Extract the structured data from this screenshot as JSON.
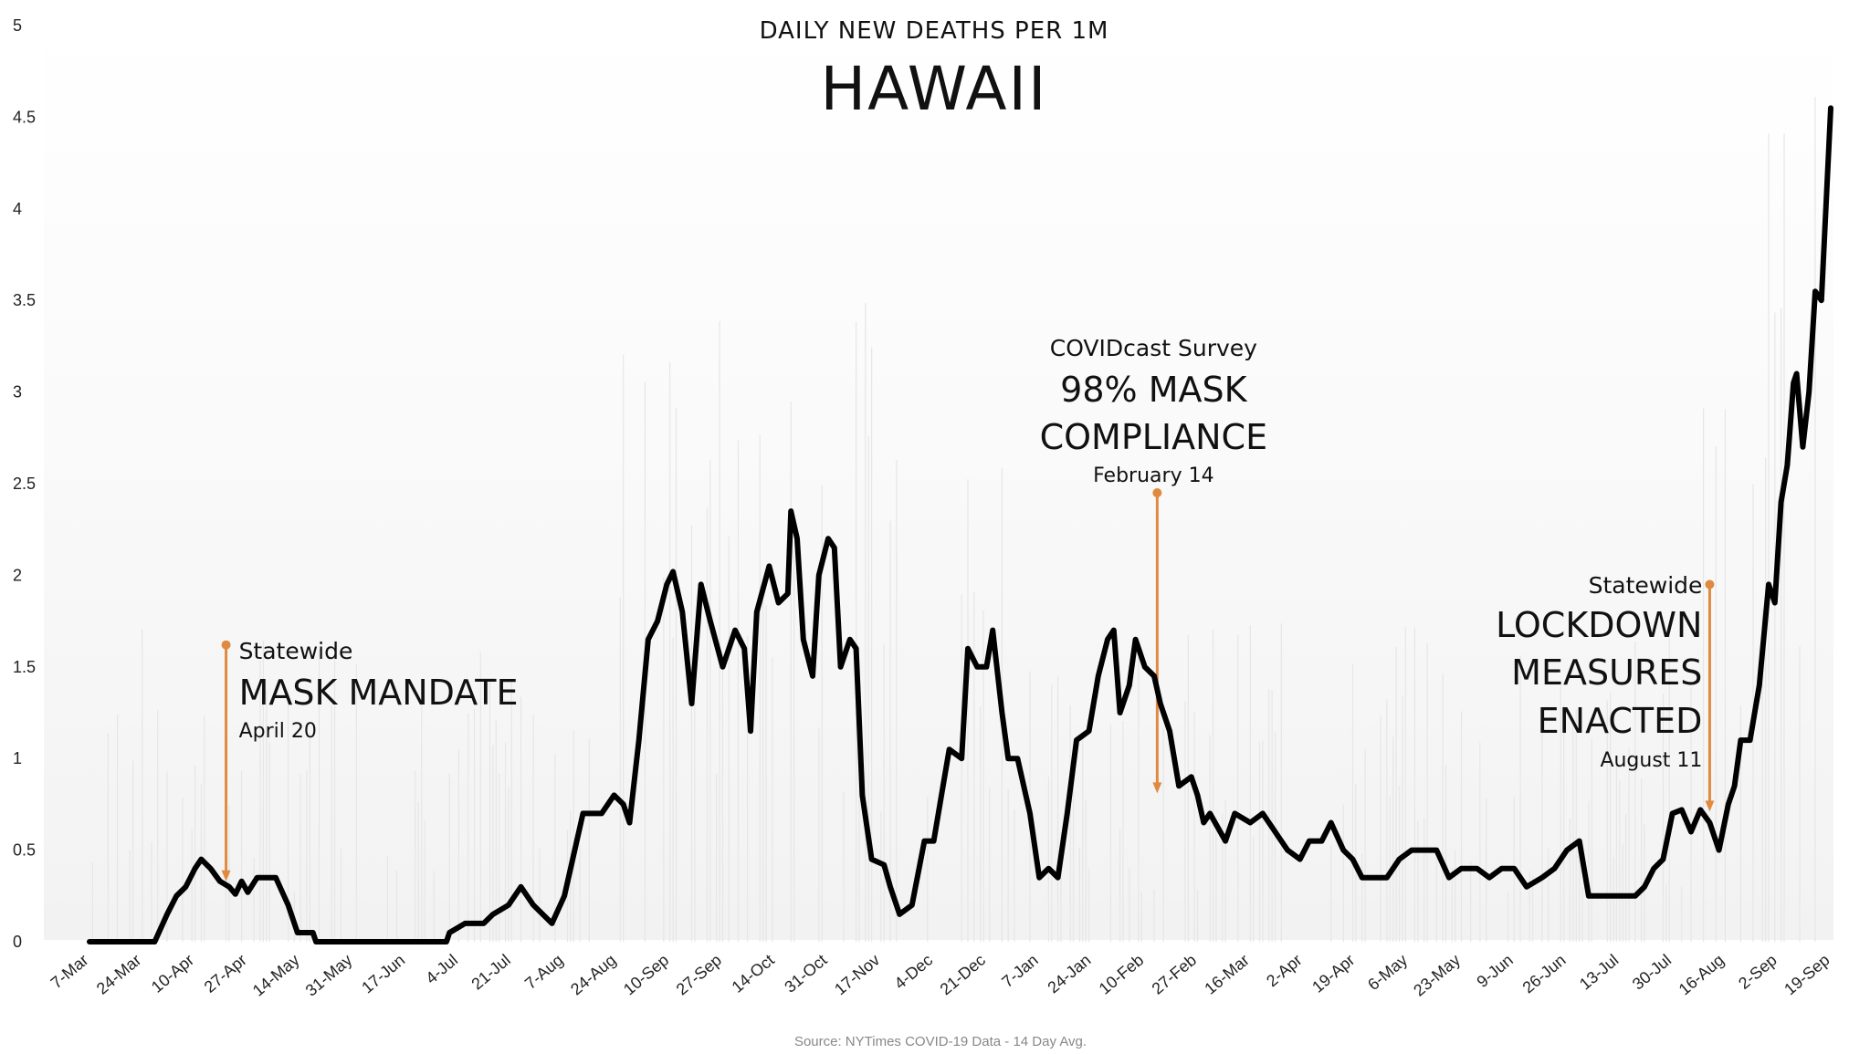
{
  "chart_data": {
    "type": "line",
    "title": "HAWAII",
    "subtitle": "DAILY NEW DEATHS PER 1M",
    "source": "Source: NYTimes COVID-19 Data - 14 Day Avg.",
    "xlabel": "",
    "ylabel": "",
    "ylim": [
      0,
      5
    ],
    "yticks": [
      "0",
      "0.5",
      "1",
      "1.5",
      "2",
      "2.5",
      "3",
      "3.5",
      "4",
      "4.5",
      "5"
    ],
    "xticks": [
      "7-Mar",
      "24-Mar",
      "10-Apr",
      "27-Apr",
      "14-May",
      "31-May",
      "17-Jun",
      "4-Jul",
      "21-Jul",
      "7-Aug",
      "24-Aug",
      "10-Sep",
      "27-Sep",
      "14-Oct",
      "31-Oct",
      "17-Nov",
      "4-Dec",
      "21-Dec",
      "7-Jan",
      "24-Jan",
      "10-Feb",
      "27-Feb",
      "16-Mar",
      "2-Apr",
      "19-Apr",
      "6-May",
      "23-May",
      "9-Jun",
      "26-Jun",
      "13-Jul",
      "30-Jul",
      "16-Aug",
      "2-Sep",
      "19-Sep"
    ],
    "x_start": "2020-03-07",
    "x_end": "2021-09-19",
    "grid": false,
    "series": [
      {
        "name": "",
        "color": "#000000",
        "points": [
          [
            "2020-03-07",
            0
          ],
          [
            "2020-03-24",
            0
          ],
          [
            "2020-03-28",
            0
          ],
          [
            "2020-04-01",
            0.15
          ],
          [
            "2020-04-04",
            0.25
          ],
          [
            "2020-04-07",
            0.3
          ],
          [
            "2020-04-10",
            0.4
          ],
          [
            "2020-04-12",
            0.45
          ],
          [
            "2020-04-15",
            0.4
          ],
          [
            "2020-04-18",
            0.33
          ],
          [
            "2020-04-21",
            0.3
          ],
          [
            "2020-04-23",
            0.26
          ],
          [
            "2020-04-25",
            0.33
          ],
          [
            "2020-04-27",
            0.27
          ],
          [
            "2020-04-30",
            0.35
          ],
          [
            "2020-05-06",
            0.35
          ],
          [
            "2020-05-10",
            0.2
          ],
          [
            "2020-05-13",
            0.05
          ],
          [
            "2020-05-18",
            0.05
          ],
          [
            "2020-05-19",
            0
          ],
          [
            "2020-06-30",
            0
          ],
          [
            "2020-07-01",
            0.05
          ],
          [
            "2020-07-06",
            0.1
          ],
          [
            "2020-07-12",
            0.1
          ],
          [
            "2020-07-15",
            0.15
          ],
          [
            "2020-07-20",
            0.2
          ],
          [
            "2020-07-24",
            0.3
          ],
          [
            "2020-07-28",
            0.2
          ],
          [
            "2020-08-03",
            0.1
          ],
          [
            "2020-08-07",
            0.25
          ],
          [
            "2020-08-13",
            0.7
          ],
          [
            "2020-08-19",
            0.7
          ],
          [
            "2020-08-23",
            0.8
          ],
          [
            "2020-08-26",
            0.75
          ],
          [
            "2020-08-28",
            0.65
          ],
          [
            "2020-08-31",
            1.1
          ],
          [
            "2020-09-03",
            1.65
          ],
          [
            "2020-09-06",
            1.75
          ],
          [
            "2020-09-09",
            1.95
          ],
          [
            "2020-09-11",
            2.02
          ],
          [
            "2020-09-14",
            1.8
          ],
          [
            "2020-09-17",
            1.3
          ],
          [
            "2020-09-20",
            1.95
          ],
          [
            "2020-09-23",
            1.75
          ],
          [
            "2020-09-27",
            1.5
          ],
          [
            "2020-10-01",
            1.7
          ],
          [
            "2020-10-04",
            1.6
          ],
          [
            "2020-10-06",
            1.15
          ],
          [
            "2020-10-08",
            1.8
          ],
          [
            "2020-10-12",
            2.05
          ],
          [
            "2020-10-15",
            1.85
          ],
          [
            "2020-10-18",
            1.9
          ],
          [
            "2020-10-19",
            2.35
          ],
          [
            "2020-10-21",
            2.2
          ],
          [
            "2020-10-23",
            1.65
          ],
          [
            "2020-10-26",
            1.45
          ],
          [
            "2020-10-28",
            2.0
          ],
          [
            "2020-10-31",
            2.2
          ],
          [
            "2020-11-02",
            2.15
          ],
          [
            "2020-11-04",
            1.5
          ],
          [
            "2020-11-07",
            1.65
          ],
          [
            "2020-11-09",
            1.6
          ],
          [
            "2020-11-11",
            0.8
          ],
          [
            "2020-11-14",
            0.45
          ],
          [
            "2020-11-18",
            0.42
          ],
          [
            "2020-11-20",
            0.3
          ],
          [
            "2020-11-23",
            0.15
          ],
          [
            "2020-11-27",
            0.2
          ],
          [
            "2020-12-01",
            0.55
          ],
          [
            "2020-12-04",
            0.55
          ],
          [
            "2020-12-07",
            0.85
          ],
          [
            "2020-12-09",
            1.05
          ],
          [
            "2020-12-13",
            1.0
          ],
          [
            "2020-12-15",
            1.6
          ],
          [
            "2020-12-18",
            1.5
          ],
          [
            "2020-12-21",
            1.5
          ],
          [
            "2020-12-23",
            1.7
          ],
          [
            "2020-12-26",
            1.25
          ],
          [
            "2020-12-28",
            1.0
          ],
          [
            "2020-12-31",
            1.0
          ],
          [
            "2021-01-04",
            0.7
          ],
          [
            "2021-01-07",
            0.35
          ],
          [
            "2021-01-10",
            0.4
          ],
          [
            "2021-01-13",
            0.35
          ],
          [
            "2021-01-16",
            0.7
          ],
          [
            "2021-01-19",
            1.1
          ],
          [
            "2021-01-23",
            1.15
          ],
          [
            "2021-01-26",
            1.45
          ],
          [
            "2021-01-29",
            1.65
          ],
          [
            "2021-01-31",
            1.7
          ],
          [
            "2021-02-02",
            1.25
          ],
          [
            "2021-02-05",
            1.4
          ],
          [
            "2021-02-07",
            1.65
          ],
          [
            "2021-02-10",
            1.5
          ],
          [
            "2021-02-13",
            1.45
          ],
          [
            "2021-02-15",
            1.3
          ],
          [
            "2021-02-18",
            1.15
          ],
          [
            "2021-02-21",
            0.85
          ],
          [
            "2021-02-25",
            0.9
          ],
          [
            "2021-02-27",
            0.8
          ],
          [
            "2021-03-01",
            0.65
          ],
          [
            "2021-03-03",
            0.7
          ],
          [
            "2021-03-08",
            0.55
          ],
          [
            "2021-03-11",
            0.7
          ],
          [
            "2021-03-16",
            0.65
          ],
          [
            "2021-03-20",
            0.7
          ],
          [
            "2021-03-24",
            0.6
          ],
          [
            "2021-03-28",
            0.5
          ],
          [
            "2021-04-01",
            0.45
          ],
          [
            "2021-04-04",
            0.55
          ],
          [
            "2021-04-08",
            0.55
          ],
          [
            "2021-04-11",
            0.65
          ],
          [
            "2021-04-15",
            0.5
          ],
          [
            "2021-04-18",
            0.45
          ],
          [
            "2021-04-21",
            0.35
          ],
          [
            "2021-04-25",
            0.35
          ],
          [
            "2021-04-29",
            0.35
          ],
          [
            "2021-05-03",
            0.45
          ],
          [
            "2021-05-07",
            0.5
          ],
          [
            "2021-05-11",
            0.5
          ],
          [
            "2021-05-15",
            0.5
          ],
          [
            "2021-05-19",
            0.35
          ],
          [
            "2021-05-23",
            0.4
          ],
          [
            "2021-05-28",
            0.4
          ],
          [
            "2021-06-01",
            0.35
          ],
          [
            "2021-06-05",
            0.4
          ],
          [
            "2021-06-09",
            0.4
          ],
          [
            "2021-06-13",
            0.3
          ],
          [
            "2021-06-18",
            0.35
          ],
          [
            "2021-06-22",
            0.4
          ],
          [
            "2021-06-26",
            0.5
          ],
          [
            "2021-06-30",
            0.55
          ],
          [
            "2021-07-03",
            0.25
          ],
          [
            "2021-07-08",
            0.25
          ],
          [
            "2021-07-13",
            0.25
          ],
          [
            "2021-07-18",
            0.25
          ],
          [
            "2021-07-21",
            0.3
          ],
          [
            "2021-07-24",
            0.4
          ],
          [
            "2021-07-27",
            0.45
          ],
          [
            "2021-07-30",
            0.7
          ],
          [
            "2021-08-02",
            0.72
          ],
          [
            "2021-08-05",
            0.6
          ],
          [
            "2021-08-08",
            0.72
          ],
          [
            "2021-08-11",
            0.65
          ],
          [
            "2021-08-14",
            0.5
          ],
          [
            "2021-08-17",
            0.75
          ],
          [
            "2021-08-19",
            0.85
          ],
          [
            "2021-08-21",
            1.1
          ],
          [
            "2021-08-24",
            1.1
          ],
          [
            "2021-08-27",
            1.4
          ],
          [
            "2021-08-30",
            1.95
          ],
          [
            "2021-09-01",
            1.85
          ],
          [
            "2021-09-03",
            2.4
          ],
          [
            "2021-09-05",
            2.6
          ],
          [
            "2021-09-07",
            3.05
          ],
          [
            "2021-09-08",
            3.1
          ],
          [
            "2021-09-10",
            2.7
          ],
          [
            "2021-09-12",
            3.0
          ],
          [
            "2021-09-14",
            3.55
          ],
          [
            "2021-09-16",
            3.5
          ],
          [
            "2021-09-18",
            4.2
          ],
          [
            "2021-09-19",
            4.55
          ]
        ]
      }
    ],
    "annotations": [
      {
        "date": "2020-04-20",
        "line1": "Statewide",
        "line2": "MASK MANDATE",
        "line3": "",
        "line4": "April 20",
        "color": "#e08a40",
        "from": 1.62,
        "to": 0.34
      },
      {
        "date": "2021-02-14",
        "line1": "COVIDcast Survey",
        "line2": "98% MASK",
        "line3": "COMPLIANCE",
        "line4": "February 14",
        "color": "#e08a40",
        "from": 2.45,
        "to": 0.82
      },
      {
        "date": "2021-08-11",
        "line1": "Statewide",
        "line2": "LOCKDOWN",
        "line3": "MEASURES",
        "line4": "ENACTED",
        "line5": "August 11",
        "color": "#e08a40",
        "from": 1.95,
        "to": 0.72
      }
    ]
  }
}
